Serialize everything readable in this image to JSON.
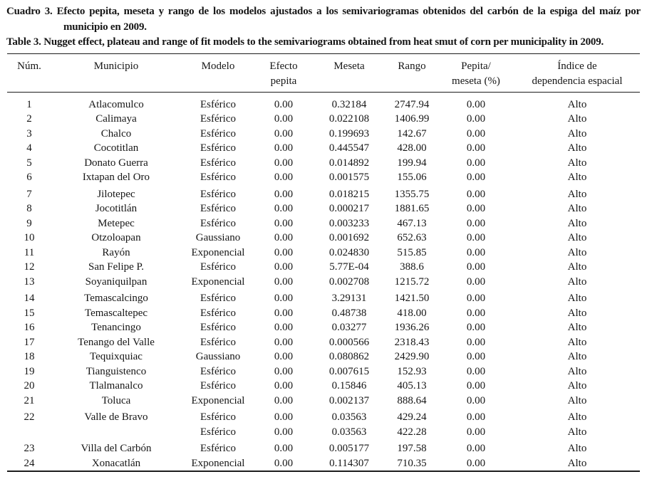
{
  "document": {
    "caption_es": "Cuadro 3. Efecto pepita, meseta y rango de los modelos ajustados a los semivariogramas obtenidos del carbón de la espiga del maíz por municipio en 2009.",
    "caption_en": "Table 3. Nugget effect, plateau and range of fit models to the semivariograms obtained from heat smut of corn per municipality in 2009."
  },
  "table": {
    "headers": {
      "num": "Núm.",
      "municipio": "Municipio",
      "modelo": "Modelo",
      "efecto_pepita": "Efecto\npepita",
      "meseta": "Meseta",
      "rango": "Rango",
      "pepita_meseta": "Pepita/\nmeseta (%)",
      "indice": "Índice de\ndependencia espacial"
    },
    "rows": [
      {
        "num": "1",
        "municipio": "Atlacomulco",
        "modelo": "Esférico",
        "efecto_pepita": "0.00",
        "meseta": "0.32184",
        "rango": "2747.94",
        "pepita_meseta": "0.00",
        "indice": "Alto"
      },
      {
        "num": "2",
        "municipio": "Calimaya",
        "modelo": "Esférico",
        "efecto_pepita": "0.00",
        "meseta": "0.022108",
        "rango": "1406.99",
        "pepita_meseta": "0.00",
        "indice": "Alto"
      },
      {
        "num": "3",
        "municipio": "Chalco",
        "modelo": "Esférico",
        "efecto_pepita": "0.00",
        "meseta": "0.199693",
        "rango": "142.67",
        "pepita_meseta": "0.00",
        "indice": "Alto"
      },
      {
        "num": "4",
        "municipio": "Cocotitlan",
        "modelo": "Esférico",
        "efecto_pepita": "0.00",
        "meseta": "0.445547",
        "rango": "428.00",
        "pepita_meseta": "0.00",
        "indice": "Alto"
      },
      {
        "num": "5",
        "municipio": "Donato Guerra",
        "modelo": "Esférico",
        "efecto_pepita": "0.00",
        "meseta": "0.014892",
        "rango": "199.94",
        "pepita_meseta": "0.00",
        "indice": "Alto"
      },
      {
        "num": "6",
        "municipio": "Ixtapan del Oro",
        "modelo": "Esférico",
        "efecto_pepita": "0.00",
        "meseta": "0.001575",
        "rango": "155.06",
        "pepita_meseta": "0.00",
        "indice": "Alto"
      },
      {
        "num": "7",
        "municipio": "Jilotepec",
        "modelo": "Esférico",
        "efecto_pepita": "0.00",
        "meseta": "0.018215",
        "rango": "1355.75",
        "pepita_meseta": "0.00",
        "indice": "Alto"
      },
      {
        "num": "8",
        "municipio": "Jocotitlán",
        "modelo": "Esférico",
        "efecto_pepita": "0.00",
        "meseta": "0.000217",
        "rango": "1881.65",
        "pepita_meseta": "0.00",
        "indice": "Alto"
      },
      {
        "num": "9",
        "municipio": "Metepec",
        "modelo": "Esférico",
        "efecto_pepita": "0.00",
        "meseta": "0.003233",
        "rango": "467.13",
        "pepita_meseta": "0.00",
        "indice": "Alto"
      },
      {
        "num": "10",
        "municipio": "Otzoloapan",
        "modelo": "Gaussiano",
        "efecto_pepita": "0.00",
        "meseta": "0.001692",
        "rango": "652.63",
        "pepita_meseta": "0.00",
        "indice": "Alto"
      },
      {
        "num": "11",
        "municipio": "Rayón",
        "modelo": "Exponencial",
        "efecto_pepita": "0.00",
        "meseta": "0.024830",
        "rango": "515.85",
        "pepita_meseta": "0.00",
        "indice": "Alto"
      },
      {
        "num": "12",
        "municipio": "San Felipe P.",
        "modelo": "Esférico",
        "efecto_pepita": "0.00",
        "meseta": "5.77E-04",
        "rango": "388.6",
        "pepita_meseta": "0.00",
        "indice": "Alto"
      },
      {
        "num": "13",
        "municipio": "Soyaniquilpan",
        "modelo": "Exponencial",
        "efecto_pepita": "0.00",
        "meseta": "0.002708",
        "rango": "1215.72",
        "pepita_meseta": "0.00",
        "indice": "Alto"
      },
      {
        "num": "14",
        "municipio": "Temascalcingo",
        "modelo": "Esférico",
        "efecto_pepita": "0.00",
        "meseta": "3.29131",
        "rango": "1421.50",
        "pepita_meseta": "0.00",
        "indice": "Alto"
      },
      {
        "num": "15",
        "municipio": "Temascaltepec",
        "modelo": "Esférico",
        "efecto_pepita": "0.00",
        "meseta": "0.48738",
        "rango": "418.00",
        "pepita_meseta": "0.00",
        "indice": "Alto"
      },
      {
        "num": "16",
        "municipio": "Tenancingo",
        "modelo": "Esférico",
        "efecto_pepita": "0.00",
        "meseta": "0.03277",
        "rango": "1936.26",
        "pepita_meseta": "0.00",
        "indice": "Alto"
      },
      {
        "num": "17",
        "municipio": "Tenango del Valle",
        "modelo": "Esférico",
        "efecto_pepita": "0.00",
        "meseta": "0.000566",
        "rango": "2318.43",
        "pepita_meseta": "0.00",
        "indice": "Alto"
      },
      {
        "num": "18",
        "municipio": "Tequixquiac",
        "modelo": "Gaussiano",
        "efecto_pepita": "0.00",
        "meseta": "0.080862",
        "rango": "2429.90",
        "pepita_meseta": "0.00",
        "indice": "Alto"
      },
      {
        "num": "19",
        "municipio": "Tianguistenco",
        "modelo": "Esférico",
        "efecto_pepita": "0.00",
        "meseta": "0.007615",
        "rango": "152.93",
        "pepita_meseta": "0.00",
        "indice": "Alto"
      },
      {
        "num": "20",
        "municipio": "Tlalmanalco",
        "modelo": "Esférico",
        "efecto_pepita": "0.00",
        "meseta": "0.15846",
        "rango": "405.13",
        "pepita_meseta": "0.00",
        "indice": "Alto"
      },
      {
        "num": "21",
        "municipio": "Toluca",
        "modelo": "Exponencial",
        "efecto_pepita": "0.00",
        "meseta": "0.002137",
        "rango": "888.64",
        "pepita_meseta": "0.00",
        "indice": "Alto"
      },
      {
        "num": "22",
        "municipio": "Valle de Bravo",
        "modelo": "Esférico",
        "efecto_pepita": "0.00",
        "meseta": "0.03563",
        "rango": "429.24",
        "pepita_meseta": "0.00",
        "indice": "Alto"
      },
      {
        "num": "",
        "municipio": "",
        "modelo": "Esférico",
        "efecto_pepita": "0.00",
        "meseta": "0.03563",
        "rango": "422.28",
        "pepita_meseta": "0.00",
        "indice": "Alto"
      },
      {
        "num": "23",
        "municipio": "Villa del Carbón",
        "modelo": "Esférico",
        "efecto_pepita": "0.00",
        "meseta": "0.005177",
        "rango": "197.58",
        "pepita_meseta": "0.00",
        "indice": "Alto"
      },
      {
        "num": "24",
        "municipio": "Xonacatlán",
        "modelo": "Exponencial",
        "efecto_pepita": "0.00",
        "meseta": "0.114307",
        "rango": "710.35",
        "pepita_meseta": "0.00",
        "indice": "Alto"
      }
    ]
  }
}
